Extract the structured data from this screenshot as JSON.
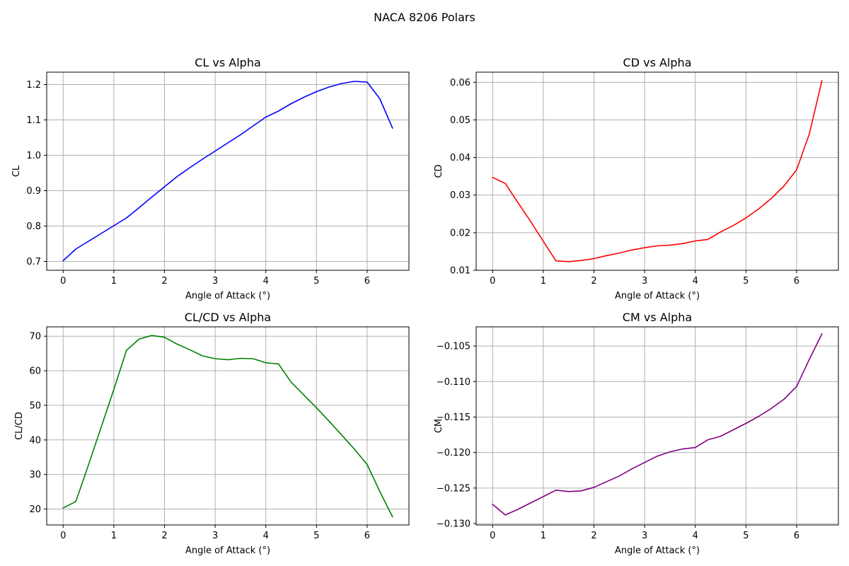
{
  "figure": {
    "title": "NACA 8206 Polars"
  },
  "chart_data": [
    {
      "type": "line",
      "title": "CL vs Alpha",
      "xlabel": "Angle of Attack (°)",
      "ylabel": "CL",
      "color": "#0000ff",
      "grid": true,
      "xlim": [
        -0.325,
        6.825
      ],
      "ylim": [
        0.675,
        1.235
      ],
      "xticks": [
        0,
        1,
        2,
        3,
        4,
        5,
        6
      ],
      "xtick_labels": [
        "0",
        "1",
        "2",
        "3",
        "4",
        "5",
        "6"
      ],
      "yticks": [
        0.7,
        0.8,
        0.9,
        1.0,
        1.1,
        1.2
      ],
      "ytick_labels": [
        "0.7",
        "0.8",
        "0.9",
        "1.0",
        "1.1",
        "1.2"
      ],
      "x": [
        0,
        0.25,
        0.5,
        0.75,
        1,
        1.25,
        1.5,
        1.75,
        2,
        2.25,
        2.5,
        2.75,
        3,
        3.25,
        3.5,
        3.75,
        4,
        4.25,
        4.5,
        4.75,
        5,
        5.25,
        5.5,
        5.75,
        6,
        6.25,
        6.5
      ],
      "y": [
        0.702,
        0.735,
        0.757,
        0.779,
        0.801,
        0.823,
        0.852,
        0.882,
        0.911,
        0.94,
        0.965,
        0.989,
        1.012,
        1.035,
        1.058,
        1.083,
        1.108,
        1.125,
        1.146,
        1.164,
        1.18,
        1.193,
        1.203,
        1.209,
        1.207,
        1.16,
        1.077
      ]
    },
    {
      "type": "line",
      "title": "CD vs Alpha",
      "xlabel": "Angle of Attack (°)",
      "ylabel": "CD",
      "color": "#ff0000",
      "grid": true,
      "xlim": [
        -0.325,
        6.825
      ],
      "ylim": [
        0.01,
        0.0627
      ],
      "xticks": [
        0,
        1,
        2,
        3,
        4,
        5,
        6
      ],
      "xtick_labels": [
        "0",
        "1",
        "2",
        "3",
        "4",
        "5",
        "6"
      ],
      "yticks": [
        0.01,
        0.02,
        0.03,
        0.04,
        0.05,
        0.06
      ],
      "ytick_labels": [
        "0.01",
        "0.02",
        "0.03",
        "0.04",
        "0.05",
        "0.06"
      ],
      "x": [
        0,
        0.25,
        0.5,
        0.75,
        1,
        1.25,
        1.5,
        1.75,
        2,
        2.25,
        2.5,
        2.75,
        3,
        3.25,
        3.5,
        3.75,
        4,
        4.25,
        4.5,
        4.75,
        5,
        5.25,
        5.5,
        5.75,
        6,
        6.25,
        6.5
      ],
      "y": [
        0.0347,
        0.0331,
        0.028,
        0.023,
        0.0177,
        0.0125,
        0.0123,
        0.0126,
        0.0131,
        0.0139,
        0.0146,
        0.0154,
        0.016,
        0.0165,
        0.0167,
        0.0171,
        0.0178,
        0.0182,
        0.0202,
        0.0219,
        0.0239,
        0.0263,
        0.0291,
        0.0324,
        0.0367,
        0.0462,
        0.0604
      ]
    },
    {
      "type": "line",
      "title": "CL/CD vs Alpha",
      "xlabel": "Angle of Attack (°)",
      "ylabel": "CL/CD",
      "color": "#008000",
      "grid": true,
      "xlim": [
        -0.325,
        6.825
      ],
      "ylim": [
        15.4,
        72.7
      ],
      "xticks": [
        0,
        1,
        2,
        3,
        4,
        5,
        6
      ],
      "xtick_labels": [
        "0",
        "1",
        "2",
        "3",
        "4",
        "5",
        "6"
      ],
      "yticks": [
        20,
        30,
        40,
        50,
        60,
        70
      ],
      "ytick_labels": [
        "20",
        "30",
        "40",
        "50",
        "60",
        "70"
      ],
      "x": [
        0,
        0.25,
        0.5,
        0.75,
        1,
        1.25,
        1.5,
        1.75,
        2,
        2.25,
        2.5,
        2.75,
        3,
        3.25,
        3.5,
        3.75,
        4,
        4.25,
        4.5,
        4.75,
        5,
        5.25,
        5.5,
        5.75,
        6,
        6.25,
        6.5
      ],
      "y": [
        20.3,
        22.2,
        32.8,
        43.7,
        54.6,
        65.9,
        69.2,
        70.2,
        69.7,
        67.7,
        66.1,
        64.3,
        63.5,
        63.2,
        63.6,
        63.5,
        62.3,
        62.0,
        56.7,
        53.0,
        49.3,
        45.4,
        41.4,
        37.3,
        32.9,
        25.1,
        17.8
      ]
    },
    {
      "type": "line",
      "title": "CM vs Alpha",
      "xlabel": "Angle of Attack (°)",
      "ylabel": "CM",
      "color": "#800080",
      "grid": true,
      "xlim": [
        -0.325,
        6.825
      ],
      "ylim": [
        -0.1302,
        -0.1023
      ],
      "xticks": [
        0,
        1,
        2,
        3,
        4,
        5,
        6
      ],
      "xtick_labels": [
        "0",
        "1",
        "2",
        "3",
        "4",
        "5",
        "6"
      ],
      "yticks": [
        -0.13,
        -0.125,
        -0.12,
        -0.115,
        -0.11,
        -0.105
      ],
      "ytick_labels": [
        "−0.130",
        "−0.125",
        "−0.120",
        "−0.115",
        "−0.110",
        "−0.105"
      ],
      "x": [
        0,
        0.25,
        0.5,
        0.75,
        1,
        1.25,
        1.5,
        1.75,
        2,
        2.25,
        2.5,
        2.75,
        3,
        3.25,
        3.5,
        3.75,
        4,
        4.25,
        4.5,
        4.75,
        5,
        5.25,
        5.5,
        5.75,
        6,
        6.25,
        6.5
      ],
      "y": [
        -0.1273,
        -0.1288,
        -0.128,
        -0.1271,
        -0.1262,
        -0.1253,
        -0.1255,
        -0.1254,
        -0.1249,
        -0.1241,
        -0.1233,
        -0.1223,
        -0.1214,
        -0.1205,
        -0.1199,
        -0.1195,
        -0.1193,
        -0.1182,
        -0.1177,
        -0.1168,
        -0.1159,
        -0.1149,
        -0.1138,
        -0.1125,
        -0.1107,
        -0.1069,
        -0.1033
      ]
    }
  ]
}
